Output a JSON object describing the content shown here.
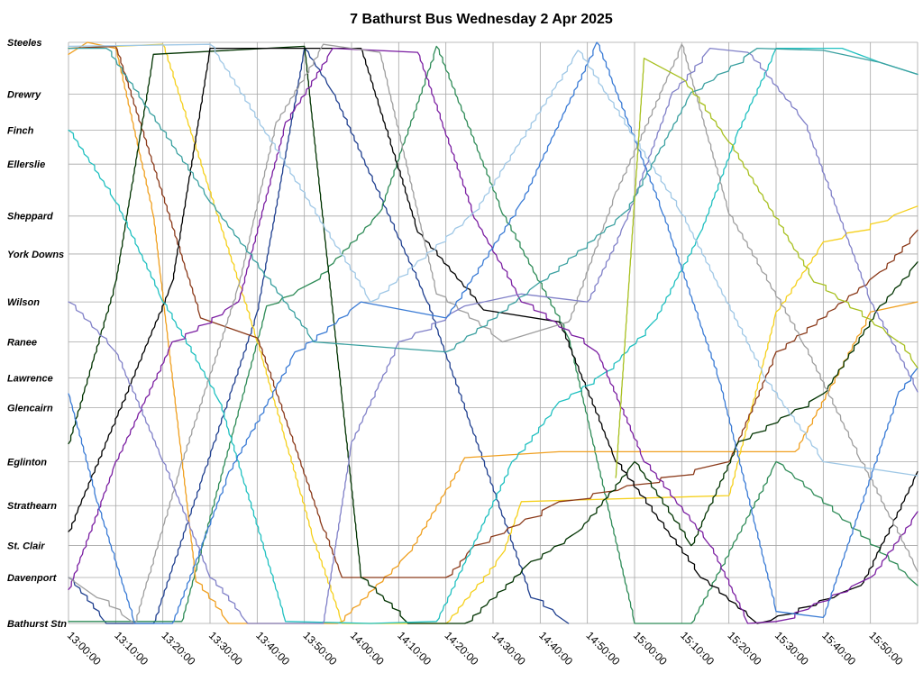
{
  "chart_data": {
    "type": "line",
    "title": "7 Bathurst Bus Wednesday 2 Apr 2025",
    "stops": [
      "Steeles",
      "Drewry",
      "Finch",
      "Ellerslie",
      "Sheppard",
      "York Downs",
      "Wilson",
      "Ranee",
      "Lawrence",
      "Glencairn",
      "Eglinton",
      "Strathearn",
      "St. Clair",
      "Davenport",
      "Bathurst Stn"
    ],
    "stop_positions": [
      0,
      2.6,
      4.4,
      6.1,
      8.7,
      10.6,
      13.0,
      15.0,
      16.8,
      18.3,
      21.0,
      23.2,
      25.2,
      26.8,
      29.1
    ],
    "x_ticks": [
      "13:00:00",
      "13:10:00",
      "13:20:00",
      "13:30:00",
      "13:40:00",
      "13:50:00",
      "14:00:00",
      "14:10:00",
      "14:20:00",
      "14:30:00",
      "14:40:00",
      "14:50:00",
      "15:00:00",
      "15:10:00",
      "15:20:00",
      "15:30:00",
      "15:40:00",
      "15:50:00"
    ],
    "x_range_minutes": [
      0,
      180
    ],
    "y_range": [
      0,
      29.1
    ],
    "grid": true,
    "legend": "none",
    "series": [
      {
        "color": "#1f3f8f",
        "points": [
          [
            0,
            26.8
          ],
          [
            8,
            29.1
          ],
          [
            18,
            29.1
          ],
          [
            40,
            13.5
          ],
          [
            50,
            0.3
          ],
          [
            56,
            2.5
          ],
          [
            76,
            13.0
          ],
          [
            98,
            27.8
          ],
          [
            106,
            29.1
          ]
        ]
      },
      {
        "color": "#2e8b57",
        "points": [
          [
            0,
            29.0
          ],
          [
            24,
            29.0
          ],
          [
            42,
            13.2
          ],
          [
            52,
            12.0
          ],
          [
            66,
            8.5
          ],
          [
            78,
            0.2
          ],
          [
            92,
            8.6
          ],
          [
            106,
            14.8
          ],
          [
            120,
            29.1
          ],
          [
            132,
            29.1
          ],
          [
            150,
            21.0
          ],
          [
            180,
            27.2
          ]
        ]
      },
      {
        "color": "#f0a020",
        "points": [
          [
            0,
            0.6
          ],
          [
            4,
            0.0
          ],
          [
            10,
            0.3
          ],
          [
            18,
            8.7
          ],
          [
            27,
            27.0
          ],
          [
            34,
            29.1
          ],
          [
            57,
            29.1
          ],
          [
            72,
            25.6
          ],
          [
            84,
            20.8
          ],
          [
            104,
            20.5
          ],
          [
            154,
            20.5
          ],
          [
            170,
            13.5
          ],
          [
            180,
            13.0
          ]
        ]
      },
      {
        "color": "#f5d01c",
        "points": [
          [
            0,
            0.3
          ],
          [
            20,
            0.1
          ],
          [
            40,
            15.0
          ],
          [
            52,
            25.0
          ],
          [
            58,
            29.1
          ],
          [
            80,
            29.1
          ],
          [
            92,
            25.6
          ],
          [
            96,
            23.0
          ],
          [
            140,
            22.7
          ],
          [
            150,
            13.5
          ],
          [
            160,
            10.0
          ],
          [
            180,
            8.2
          ]
        ]
      },
      {
        "color": "#8b3a1a",
        "points": [
          [
            0,
            0.3
          ],
          [
            10,
            0.2
          ],
          [
            28,
            13.8
          ],
          [
            40,
            14.8
          ],
          [
            54,
            24.4
          ],
          [
            58,
            26.8
          ],
          [
            80,
            26.8
          ],
          [
            86,
            25.2
          ],
          [
            104,
            23.0
          ],
          [
            140,
            21.0
          ],
          [
            150,
            15.5
          ],
          [
            172,
            11.5
          ],
          [
            180,
            9.4
          ]
        ]
      },
      {
        "color": "#003300",
        "points": [
          [
            0,
            20.1
          ],
          [
            10,
            12.0
          ],
          [
            18,
            0.6
          ],
          [
            50,
            0.2
          ],
          [
            62,
            26.8
          ],
          [
            72,
            29.1
          ],
          [
            84,
            29.1
          ],
          [
            98,
            26.0
          ],
          [
            108,
            24.5
          ],
          [
            120,
            21.0
          ],
          [
            132,
            25.2
          ],
          [
            142,
            20.0
          ],
          [
            160,
            17.6
          ],
          [
            172,
            13.2
          ],
          [
            180,
            11.0
          ]
        ]
      },
      {
        "color": "#000000",
        "points": [
          [
            0,
            24.5
          ],
          [
            22,
            12.0
          ],
          [
            30,
            0.3
          ],
          [
            62,
            0.3
          ],
          [
            74,
            9.5
          ],
          [
            88,
            13.4
          ],
          [
            104,
            14.0
          ],
          [
            116,
            21.0
          ],
          [
            134,
            26.8
          ],
          [
            146,
            29.1
          ],
          [
            168,
            27.2
          ],
          [
            180,
            21.5
          ]
        ]
      },
      {
        "color": "#20c0c0",
        "points": [
          [
            0,
            4.4
          ],
          [
            10,
            8.0
          ],
          [
            20,
            13.0
          ],
          [
            32,
            18.0
          ],
          [
            46,
            29.0
          ],
          [
            64,
            29.1
          ],
          [
            78,
            29.0
          ],
          [
            94,
            21.0
          ],
          [
            104,
            18.0
          ],
          [
            114,
            16.5
          ],
          [
            124,
            14.0
          ],
          [
            134,
            9.5
          ],
          [
            142,
            4.4
          ],
          [
            150,
            0.3
          ],
          [
            164,
            0.3
          ],
          [
            172,
            1.0
          ],
          [
            180,
            1.6
          ]
        ]
      },
      {
        "color": "#7b1fa2",
        "points": [
          [
            0,
            27.4
          ],
          [
            10,
            21.0
          ],
          [
            22,
            15.0
          ],
          [
            36,
            13.0
          ],
          [
            46,
            4.0
          ],
          [
            56,
            0.3
          ],
          [
            74,
            0.5
          ],
          [
            86,
            8.8
          ],
          [
            96,
            13.0
          ],
          [
            112,
            15.5
          ],
          [
            122,
            21.0
          ],
          [
            136,
            25.2
          ],
          [
            144,
            29.1
          ],
          [
            150,
            29.0
          ],
          [
            170,
            26.8
          ],
          [
            180,
            23.5
          ]
        ]
      },
      {
        "color": "#9e9e9e",
        "points": [
          [
            0,
            26.8
          ],
          [
            6,
            27.8
          ],
          [
            14,
            29.1
          ],
          [
            24,
            21.0
          ],
          [
            36,
            12.2
          ],
          [
            44,
            4.0
          ],
          [
            54,
            0.1
          ],
          [
            66,
            0.5
          ],
          [
            78,
            12.6
          ],
          [
            92,
            15.0
          ],
          [
            106,
            14.0
          ],
          [
            116,
            7.5
          ],
          [
            130,
            0.1
          ],
          [
            140,
            8.6
          ],
          [
            156,
            15.2
          ],
          [
            168,
            21.0
          ],
          [
            180,
            26.5
          ]
        ]
      },
      {
        "color": "#8080c8",
        "points": [
          [
            0,
            13.0
          ],
          [
            10,
            15.5
          ],
          [
            20,
            21.0
          ],
          [
            30,
            26.8
          ],
          [
            38,
            29.1
          ],
          [
            54,
            29.1
          ],
          [
            60,
            20.0
          ],
          [
            70,
            15.0
          ],
          [
            84,
            13.2
          ],
          [
            96,
            12.6
          ],
          [
            110,
            13.0
          ],
          [
            118,
            9.0
          ],
          [
            128,
            2.5
          ],
          [
            136,
            0.3
          ],
          [
            144,
            0.5
          ],
          [
            156,
            4.0
          ],
          [
            170,
            13.0
          ],
          [
            180,
            17.5
          ]
        ]
      },
      {
        "color": "#3a7bd5",
        "points": [
          [
            0,
            17.6
          ],
          [
            6,
            23.0
          ],
          [
            14,
            29.1
          ],
          [
            22,
            29.1
          ],
          [
            34,
            21.5
          ],
          [
            48,
            15.5
          ],
          [
            62,
            13.0
          ],
          [
            80,
            13.8
          ],
          [
            96,
            8.0
          ],
          [
            112,
            0.0
          ],
          [
            126,
            8.6
          ],
          [
            138,
            17.0
          ],
          [
            150,
            28.5
          ],
          [
            160,
            28.8
          ],
          [
            176,
            17.5
          ],
          [
            180,
            16.3
          ]
        ]
      },
      {
        "color": "#a0c8e6",
        "points": [
          [
            0,
            0.2
          ],
          [
            30,
            0.1
          ],
          [
            64,
            13.0
          ],
          [
            86,
            8.5
          ],
          [
            108,
            0.4
          ],
          [
            130,
            8.6
          ],
          [
            148,
            17.0
          ],
          [
            160,
            21.0
          ],
          [
            180,
            21.7
          ]
        ]
      },
      {
        "color": "#3aa0a0",
        "points": [
          [
            0,
            0.3
          ],
          [
            8,
            0.3
          ],
          [
            30,
            8.0
          ],
          [
            52,
            15.0
          ],
          [
            80,
            15.5
          ],
          [
            100,
            12.0
          ],
          [
            118,
            8.5
          ],
          [
            132,
            2.5
          ],
          [
            146,
            0.3
          ],
          [
            160,
            0.4
          ],
          [
            172,
            1.0
          ],
          [
            180,
            1.6
          ]
        ]
      },
      {
        "color": "#a8c020",
        "points": [
          [
            116,
            21.8
          ],
          [
            122,
            0.8
          ],
          [
            130,
            1.8
          ],
          [
            140,
            5.0
          ],
          [
            158,
            12.0
          ],
          [
            176,
            15.0
          ],
          [
            180,
            16.3
          ]
        ]
      }
    ]
  }
}
